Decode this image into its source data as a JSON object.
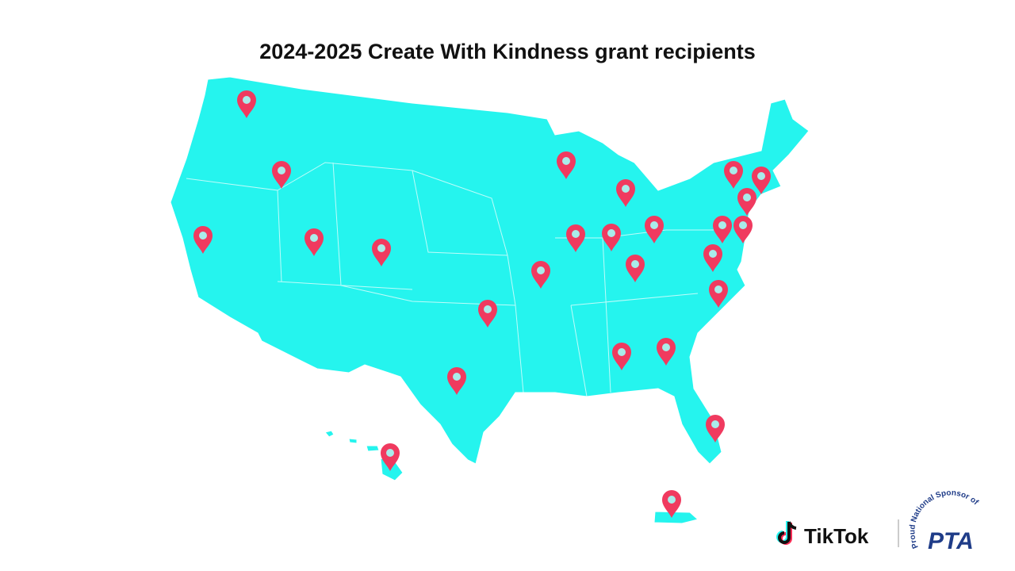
{
  "header": {
    "title": "2024-2025 Create With Kindness grant recipients"
  },
  "footer": {
    "brand": "TikTok",
    "sponsor_tagline": "Proud National Sponsor of",
    "sponsor_name": "PTA"
  }
}
